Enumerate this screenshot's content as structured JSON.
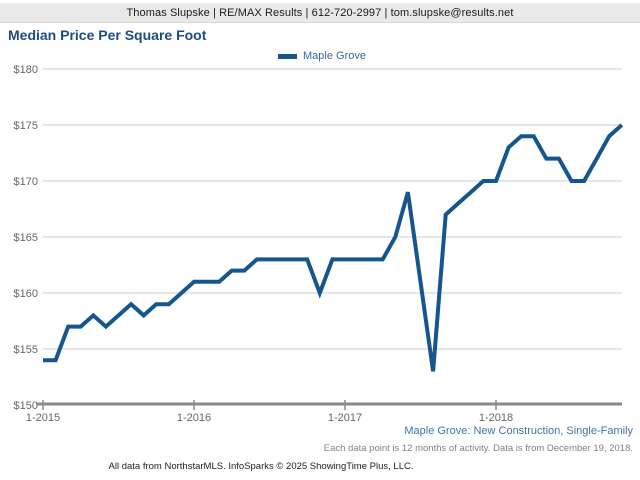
{
  "header": {
    "contact_line": "Thomas Slupske | RE/MAX Results | 612-720-2997 | tom.slupske@results.net"
  },
  "title": "Median Price Per Square Foot",
  "legend": {
    "label": "Maple Grove"
  },
  "chart_data": {
    "type": "line",
    "title": "Median Price Per Square Foot",
    "legend_entries": [
      "Maple Grove"
    ],
    "legend_position": "top-center",
    "grid": "horizontal",
    "ylim": [
      150,
      180
    ],
    "y_tick_step": 5,
    "y_tick_labels": [
      "$150",
      "$155",
      "$160",
      "$165",
      "$170",
      "$175",
      "$180"
    ],
    "x_tick_labels": [
      "1-2015",
      "1-2016",
      "1-2017",
      "1-2018"
    ],
    "months": [
      "1-2015",
      "2-2015",
      "3-2015",
      "4-2015",
      "5-2015",
      "6-2015",
      "7-2015",
      "8-2015",
      "9-2015",
      "10-2015",
      "11-2015",
      "12-2015",
      "1-2016",
      "2-2016",
      "3-2016",
      "4-2016",
      "5-2016",
      "6-2016",
      "7-2016",
      "8-2016",
      "9-2016",
      "10-2016",
      "11-2016",
      "12-2016",
      "1-2017",
      "2-2017",
      "3-2017",
      "4-2017",
      "5-2017",
      "6-2017",
      "7-2017",
      "8-2017",
      "9-2017",
      "10-2017",
      "11-2017",
      "12-2017",
      "1-2018",
      "2-2018",
      "3-2018",
      "4-2018",
      "5-2018",
      "6-2018",
      "7-2018",
      "8-2018",
      "9-2018",
      "10-2018",
      "11-2018"
    ],
    "series": [
      {
        "name": "Maple Grove",
        "values": [
          154,
          154,
          157,
          157,
          158,
          157,
          158,
          159,
          158,
          159,
          159,
          160,
          161,
          161,
          161,
          162,
          162,
          163,
          163,
          163,
          163,
          163,
          160,
          163,
          163,
          163,
          163,
          163,
          165,
          169,
          161,
          153,
          167,
          168,
          169,
          170,
          170,
          173,
          174,
          174,
          172,
          172,
          170,
          170,
          172,
          174,
          175
        ]
      }
    ]
  },
  "footer": {
    "series_context": "Maple Grove: New Construction, Single-Family",
    "data_note": "Each data point is 12 months of activity. Data is from December 19, 2018.",
    "attribution": "All data from NorthstarMLS. InfoSparks © 2025 ShowingTime Plus, LLC."
  },
  "colors": {
    "line": "#16568e",
    "title": "#1d4d7c",
    "legend_text": "#3a689a",
    "footer_link": "#3f74ad",
    "axis_label": "#666666",
    "gridline": "#cccccc",
    "axis_line": "#8a8a8a",
    "header_bg": "#e9e9e9"
  }
}
